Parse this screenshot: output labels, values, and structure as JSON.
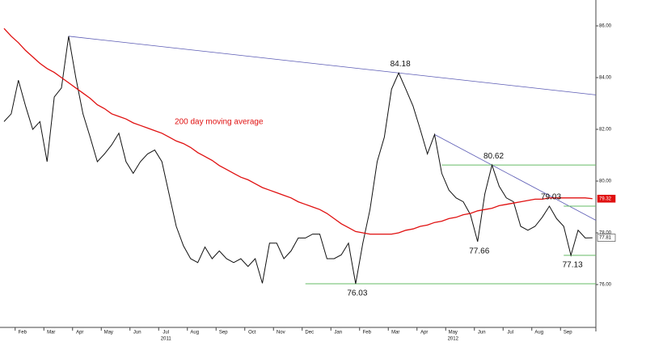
{
  "chart_data": {
    "type": "line",
    "categories": [
      null,
      null,
      "Feb",
      null,
      null,
      null,
      "Mar",
      null,
      null,
      null,
      "Apr",
      null,
      null,
      null,
      "May",
      null,
      null,
      null,
      "Jun",
      null,
      null,
      null,
      "Jul",
      null,
      null,
      null,
      "Aug",
      null,
      null,
      null,
      "Sep",
      null,
      null,
      null,
      "Oct",
      null,
      null,
      null,
      "Nov",
      null,
      null,
      null,
      "Dec",
      null,
      null,
      null,
      "Jan",
      null,
      null,
      null,
      "Feb",
      null,
      null,
      null,
      "Mar",
      null,
      null,
      null,
      "Apr",
      null,
      null,
      null,
      "May",
      null,
      null,
      null,
      "Jun",
      null,
      null,
      null,
      "Jul",
      null,
      null,
      null,
      "Aug",
      null,
      null,
      null,
      "Sep",
      null,
      null,
      null,
      null
    ],
    "year_labels": [
      null,
      null,
      null,
      null,
      null,
      null,
      null,
      null,
      null,
      null,
      null,
      null,
      null,
      null,
      null,
      null,
      null,
      null,
      null,
      null,
      null,
      null,
      "2011",
      null,
      null,
      null,
      null,
      null,
      null,
      null,
      null,
      null,
      null,
      null,
      null,
      null,
      null,
      null,
      null,
      null,
      null,
      null,
      null,
      null,
      null,
      null,
      null,
      null,
      null,
      null,
      null,
      null,
      null,
      null,
      null,
      null,
      null,
      null,
      null,
      null,
      null,
      null,
      "2012",
      null,
      null,
      null,
      null,
      null,
      null,
      null,
      null,
      null,
      null,
      null,
      null,
      null,
      null,
      null,
      null,
      null,
      null,
      null,
      null
    ],
    "series": [
      {
        "color": "#111111",
        "values": [
          82.3,
          82.6,
          83.9,
          82.9,
          82.0,
          82.3,
          80.75,
          83.25,
          83.6,
          85.6,
          84.0,
          82.6,
          81.7,
          80.75,
          81.05,
          81.4,
          81.85,
          80.75,
          80.3,
          80.75,
          81.05,
          81.2,
          80.75,
          79.5,
          78.25,
          77.5,
          77.0,
          76.85,
          77.45,
          77.0,
          77.3,
          77.0,
          76.85,
          77.0,
          76.7,
          77.0,
          76.05,
          77.6,
          77.6,
          77.0,
          77.3,
          77.8,
          77.8,
          77.95,
          77.95,
          77.0,
          77.0,
          77.15,
          77.6,
          76.03,
          77.6,
          78.9,
          80.75,
          81.7,
          83.55,
          84.18,
          83.55,
          82.9,
          82.0,
          81.05,
          81.8,
          80.3,
          79.65,
          79.35,
          79.2,
          78.7,
          77.66,
          79.5,
          80.62,
          79.8,
          79.35,
          79.2,
          78.25,
          78.1,
          78.25,
          78.6,
          79.03,
          78.55,
          78.25,
          77.13,
          78.1,
          77.8,
          77.81
        ],
        "value_labels": [
          null,
          null,
          null,
          null,
          null,
          null,
          null,
          null,
          null,
          null,
          null,
          null,
          null,
          null,
          null,
          null,
          null,
          null,
          null,
          null,
          null,
          null,
          null,
          null,
          null,
          null,
          null,
          null,
          null,
          null,
          null,
          null,
          null,
          null,
          null,
          null,
          null,
          null,
          null,
          null,
          null,
          null,
          null,
          null,
          null,
          null,
          null,
          null,
          null,
          "76.03",
          null,
          null,
          null,
          null,
          null,
          "84.18",
          null,
          null,
          null,
          null,
          null,
          null,
          null,
          null,
          null,
          null,
          "77.66",
          null,
          "80.62",
          null,
          null,
          null,
          null,
          null,
          null,
          null,
          "79.03",
          null,
          null,
          "77.13",
          null,
          null,
          "77.81"
        ]
      },
      {
        "name": "200 day moving average",
        "color": "#e01010",
        "values": [
          85.9,
          85.6,
          85.35,
          85.05,
          84.8,
          84.55,
          84.35,
          84.2,
          84.0,
          83.8,
          83.6,
          83.4,
          83.2,
          82.95,
          82.8,
          82.6,
          82.5,
          82.4,
          82.25,
          82.15,
          82.05,
          81.95,
          81.85,
          81.7,
          81.55,
          81.45,
          81.3,
          81.1,
          80.95,
          80.8,
          80.6,
          80.45,
          80.3,
          80.15,
          80.05,
          79.9,
          79.75,
          79.65,
          79.55,
          79.45,
          79.35,
          79.2,
          79.1,
          79.0,
          78.9,
          78.75,
          78.55,
          78.35,
          78.2,
          78.05,
          78.0,
          77.95,
          77.95,
          77.95,
          77.95,
          78.0,
          78.1,
          78.15,
          78.25,
          78.3,
          78.4,
          78.45,
          78.55,
          78.6,
          78.7,
          78.75,
          78.85,
          78.9,
          78.95,
          79.05,
          79.1,
          79.15,
          79.2,
          79.25,
          79.3,
          79.3,
          79.35,
          79.35,
          79.35,
          79.35,
          79.35,
          79.35,
          79.32
        ],
        "value_labels": [
          null,
          null,
          null,
          null,
          null,
          null,
          null,
          null,
          null,
          null,
          null,
          null,
          null,
          null,
          null,
          null,
          null,
          null,
          null,
          null,
          null,
          null,
          null,
          null,
          null,
          null,
          null,
          null,
          null,
          null,
          null,
          null,
          null,
          null,
          null,
          null,
          null,
          null,
          null,
          null,
          null,
          null,
          null,
          null,
          null,
          null,
          null,
          null,
          null,
          null,
          null,
          null,
          null,
          null,
          null,
          null,
          null,
          null,
          null,
          null,
          null,
          null,
          null,
          null,
          null,
          null,
          null,
          null,
          null,
          null,
          null,
          null,
          null,
          null,
          null,
          null,
          null,
          null,
          null,
          null,
          null,
          null,
          "79.32"
        ]
      }
    ],
    "ylim": [
      74.5,
      87
    ],
    "yticks": [
      {
        "value": 76,
        "label": "76.00"
      },
      {
        "value": 78,
        "label": "78.00"
      },
      {
        "value": 80,
        "label": "80.00"
      },
      {
        "value": 82,
        "label": "82.00"
      },
      {
        "value": 84,
        "label": "84.00"
      },
      {
        "value": 86,
        "label": "86.00"
      }
    ],
    "grid": false
  }
}
